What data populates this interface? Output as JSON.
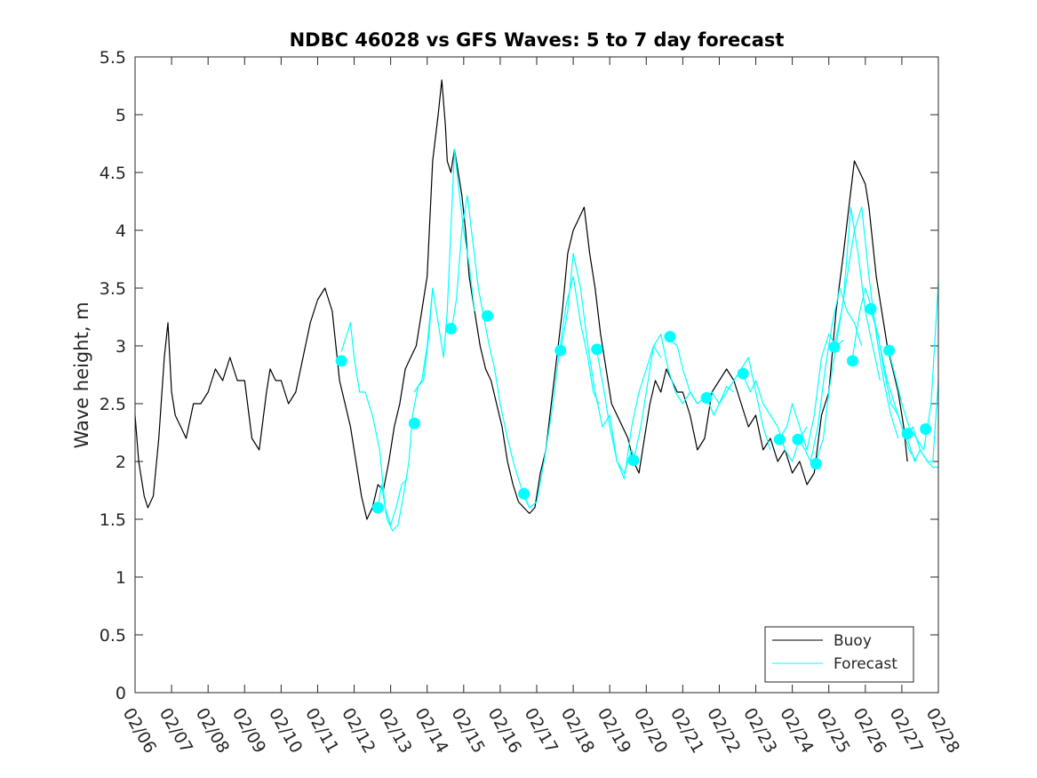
{
  "chart_data": {
    "type": "line",
    "title": "NDBC 46028 vs GFS Waves: 5 to 7 day forecast",
    "xlabel": "",
    "ylabel": "Wave height, m",
    "xlim": [
      0,
      22
    ],
    "ylim": [
      0,
      5.5
    ],
    "x_ticks": [
      "02/06",
      "02/07",
      "02/08",
      "02/09",
      "02/10",
      "02/11",
      "02/12",
      "02/13",
      "02/14",
      "02/15",
      "02/16",
      "02/17",
      "02/18",
      "02/19",
      "02/20",
      "02/21",
      "02/22",
      "02/23",
      "02/24",
      "02/25",
      "02/26",
      "02/27",
      "02/28"
    ],
    "y_ticks": [
      "0",
      "0.5",
      "1",
      "1.5",
      "2",
      "2.5",
      "3",
      "3.5",
      "4",
      "4.5",
      "5",
      "5.5"
    ],
    "legend": {
      "position": "bottom-right",
      "entries": [
        "Buoy",
        "Forecast"
      ]
    },
    "colors": {
      "buoy": "#000000",
      "forecast": "#00ffff",
      "axis": "#262626"
    },
    "series": [
      {
        "name": "Buoy",
        "x": [
          0,
          0.1,
          0.25,
          0.35,
          0.5,
          0.65,
          0.8,
          0.9,
          1.0,
          1.1,
          1.25,
          1.4,
          1.6,
          1.8,
          2.0,
          2.2,
          2.4,
          2.6,
          2.8,
          3.0,
          3.2,
          3.4,
          3.6,
          3.7,
          3.85,
          4.0,
          4.2,
          4.4,
          4.6,
          4.8,
          5.0,
          5.2,
          5.4,
          5.5,
          5.6,
          5.75,
          5.9,
          6.05,
          6.2,
          6.35,
          6.5,
          6.65,
          6.8,
          6.95,
          7.1,
          7.25,
          7.4,
          7.55,
          7.7,
          7.85,
          8.0,
          8.15,
          8.3,
          8.4,
          8.5,
          8.55,
          8.65,
          8.75,
          8.85,
          8.95,
          9.05,
          9.15,
          9.3,
          9.45,
          9.6,
          9.75,
          9.9,
          10.05,
          10.2,
          10.35,
          10.5,
          10.65,
          10.8,
          10.95,
          11.1,
          11.25,
          11.4,
          11.55,
          11.7,
          11.85,
          12.0,
          12.15,
          12.3,
          12.45,
          12.6,
          12.75,
          12.9,
          13.05,
          13.2,
          13.35,
          13.5,
          13.65,
          13.8,
          13.95,
          14.1,
          14.25,
          14.4,
          14.55,
          14.7,
          14.85,
          15.0,
          15.2,
          15.4,
          15.6,
          15.8,
          16.0,
          16.2,
          16.4,
          16.6,
          16.8,
          17.0,
          17.2,
          17.4,
          17.6,
          17.8,
          18.0,
          18.2,
          18.4,
          18.6,
          18.8,
          19.0,
          19.2,
          19.4,
          19.55,
          19.7,
          19.85,
          20.0,
          20.1,
          20.2,
          20.3,
          20.45,
          20.6,
          20.75,
          20.9,
          21.05,
          21.15
        ],
        "values": [
          2.4,
          2.0,
          1.7,
          1.6,
          1.7,
          2.2,
          2.9,
          3.2,
          2.6,
          2.4,
          2.3,
          2.2,
          2.5,
          2.5,
          2.6,
          2.8,
          2.7,
          2.9,
          2.7,
          2.7,
          2.2,
          2.1,
          2.6,
          2.8,
          2.7,
          2.7,
          2.5,
          2.6,
          2.9,
          3.2,
          3.4,
          3.5,
          3.3,
          3.0,
          2.7,
          2.5,
          2.3,
          2.0,
          1.7,
          1.5,
          1.6,
          1.8,
          1.75,
          2.0,
          2.3,
          2.5,
          2.8,
          2.9,
          3.0,
          3.3,
          3.6,
          4.6,
          5.0,
          5.3,
          4.9,
          4.6,
          4.5,
          4.7,
          4.5,
          4.3,
          4.0,
          3.6,
          3.3,
          3.0,
          2.8,
          2.7,
          2.5,
          2.3,
          2.0,
          1.8,
          1.65,
          1.6,
          1.55,
          1.6,
          1.9,
          2.1,
          2.5,
          2.9,
          3.3,
          3.8,
          4.0,
          4.1,
          4.2,
          3.8,
          3.5,
          3.1,
          2.8,
          2.5,
          2.4,
          2.3,
          2.2,
          2.0,
          1.9,
          2.2,
          2.5,
          2.7,
          2.6,
          2.8,
          2.7,
          2.6,
          2.6,
          2.4,
          2.1,
          2.2,
          2.6,
          2.7,
          2.8,
          2.7,
          2.5,
          2.3,
          2.4,
          2.1,
          2.2,
          2.0,
          2.1,
          1.9,
          2.0,
          1.8,
          1.9,
          2.4,
          2.6,
          3.3,
          3.8,
          4.2,
          4.6,
          4.5,
          4.4,
          4.2,
          3.9,
          3.6,
          3.3,
          3.0,
          2.8,
          2.6,
          2.3,
          2.0
        ]
      },
      {
        "name": "Forecast",
        "segments": [
          {
            "x": [
              5.65,
              5.8,
              5.9,
              6.0,
              6.15,
              6.3,
              6.5,
              6.7,
              6.85,
              7.0,
              7.15,
              7.3,
              7.45
            ],
            "values": [
              2.95,
              3.1,
              3.2,
              2.9,
              2.6,
              2.6,
              2.4,
              2.1,
              1.6,
              1.45,
              1.6,
              1.8,
              1.85
            ]
          },
          {
            "x": [
              6.65,
              6.75,
              6.9,
              7.05,
              7.2,
              7.35,
              7.5,
              7.6,
              7.75,
              7.9,
              8.05,
              8.15
            ],
            "values": [
              1.6,
              1.8,
              1.5,
              1.4,
              1.45,
              1.7,
              2.0,
              2.4,
              2.65,
              2.7,
              3.1,
              3.5
            ]
          },
          {
            "x": [
              7.65,
              7.85,
              8.0,
              8.15,
              8.3,
              8.45,
              8.55,
              8.65,
              8.75,
              8.85,
              9.0,
              9.15,
              9.3
            ],
            "values": [
              2.6,
              2.7,
              3.0,
              3.5,
              3.2,
              2.9,
              3.3,
              4.0,
              4.7,
              4.4,
              4.0,
              3.7,
              3.3
            ]
          },
          {
            "x": [
              8.65,
              8.8,
              8.95,
              9.1,
              9.25,
              9.4,
              9.55,
              9.7,
              9.85,
              10.0,
              10.2,
              10.4,
              10.6,
              10.8,
              11.0
            ],
            "values": [
              3.1,
              3.4,
              4.0,
              4.3,
              3.9,
              3.5,
              3.25,
              3.0,
              2.8,
              2.5,
              2.2,
              1.95,
              1.75,
              1.6,
              1.65
            ]
          },
          {
            "x": [
              10.65,
              10.8,
              11.0,
              11.2,
              11.4,
              11.6,
              11.8,
              12.0,
              12.2,
              12.4,
              12.55,
              12.7
            ],
            "values": [
              1.7,
              1.6,
              1.65,
              2.0,
              2.4,
              2.9,
              3.35,
              3.6,
              3.2,
              2.9,
              2.6,
              2.5
            ]
          },
          {
            "x": [
              11.65,
              11.85,
              12.0,
              12.2,
              12.4,
              12.6,
              12.8,
              13.0,
              13.2,
              13.4,
              13.6,
              13.75
            ],
            "values": [
              2.95,
              3.3,
              3.8,
              3.5,
              3.0,
              2.6,
              2.3,
              2.4,
              2.0,
              1.9,
              2.1,
              2.0
            ]
          },
          {
            "x": [
              12.65,
              12.85,
              13.0,
              13.2,
              13.4,
              13.6,
              13.8,
              14.0,
              14.2,
              14.4
            ],
            "values": [
              2.95,
              2.6,
              2.3,
              2.0,
              1.85,
              2.3,
              2.6,
              2.8,
              3.0,
              2.9
            ]
          },
          {
            "x": [
              13.65,
              13.85,
              14.0,
              14.2,
              14.4,
              14.6,
              14.8,
              15.0,
              15.2,
              15.4
            ],
            "values": [
              2.0,
              2.3,
              2.6,
              3.0,
              3.1,
              2.8,
              2.6,
              2.5,
              2.6,
              2.5
            ]
          },
          {
            "x": [
              14.65,
              14.85,
              15.0,
              15.2,
              15.4,
              15.6,
              15.8,
              16.0,
              16.2,
              16.4
            ],
            "values": [
              3.05,
              3.0,
              2.8,
              2.6,
              2.5,
              2.55,
              2.6,
              2.5,
              2.65,
              2.6
            ]
          },
          {
            "x": [
              15.65,
              15.85,
              16.0,
              16.2,
              16.4,
              16.6,
              16.8,
              17.0,
              17.2,
              17.4
            ],
            "values": [
              2.55,
              2.4,
              2.5,
              2.6,
              2.7,
              2.8,
              2.9,
              2.6,
              2.3,
              2.1
            ]
          },
          {
            "x": [
              16.65,
              16.85,
              17.0,
              17.2,
              17.4,
              17.6,
              17.8,
              18.0,
              18.2,
              18.4
            ],
            "values": [
              2.75,
              2.6,
              2.7,
              2.5,
              2.4,
              2.3,
              2.1,
              2.0,
              2.2,
              2.3
            ]
          },
          {
            "x": [
              17.65,
              17.85,
              18.0,
              18.2,
              18.4,
              18.6,
              18.8,
              19.0,
              19.2,
              19.4
            ],
            "values": [
              2.2,
              2.3,
              2.5,
              2.3,
              2.1,
              2.4,
              2.9,
              3.1,
              3.0,
              3.05
            ]
          },
          {
            "x": [
              18.15,
              18.35,
              18.5,
              18.7,
              18.9,
              19.1,
              19.3,
              19.5,
              19.7,
              19.9
            ],
            "values": [
              2.2,
              2.1,
              2.0,
              2.3,
              2.8,
              3.2,
              3.5,
              3.3,
              3.2,
              3.0
            ]
          },
          {
            "x": [
              18.65,
              18.85,
              19.0,
              19.2,
              19.4,
              19.6,
              19.8,
              20.0,
              20.2,
              20.4
            ],
            "values": [
              2.0,
              2.2,
              2.6,
              3.0,
              3.4,
              4.2,
              3.8,
              3.3,
              3.0,
              2.7
            ]
          },
          {
            "x": [
              19.15,
              19.35,
              19.5,
              19.7,
              19.9,
              20.1,
              20.3,
              20.5,
              20.7,
              20.9
            ],
            "values": [
              3.0,
              3.3,
              3.6,
              4.0,
              4.2,
              3.6,
              3.1,
              2.7,
              2.4,
              2.2
            ]
          },
          {
            "x": [
              19.65,
              19.85,
              20.0,
              20.2,
              20.4,
              20.6,
              20.8,
              21.0,
              21.2,
              21.4
            ],
            "values": [
              2.9,
              3.3,
              3.5,
              3.3,
              3.0,
              2.7,
              2.5,
              2.3,
              2.1,
              2.0
            ]
          },
          {
            "x": [
              20.15,
              20.35,
              20.5,
              20.7,
              20.9,
              21.1,
              21.3,
              21.5,
              21.7,
              21.85,
              22.0
            ],
            "values": [
              3.3,
              3.1,
              2.8,
              2.5,
              2.4,
              2.2,
              2.3,
              2.1,
              2.0,
              2.0,
              2.7
            ]
          },
          {
            "x": [
              20.65,
              20.85,
              21.0,
              21.2,
              21.4,
              21.6,
              21.8,
              22.0
            ],
            "values": [
              2.95,
              2.7,
              2.5,
              2.3,
              2.2,
              2.1,
              2.5,
              3.55
            ]
          },
          {
            "x": [
              21.15,
              21.35,
              21.5,
              21.7,
              21.85,
              22.0
            ],
            "values": [
              2.2,
              2.0,
              2.1,
              2.0,
              1.95,
              1.95
            ]
          }
        ],
        "markers": {
          "x": [
            5.65,
            6.65,
            7.65,
            8.65,
            9.65,
            10.65,
            11.65,
            12.65,
            13.65,
            14.65,
            15.65,
            16.65,
            17.65,
            18.15,
            18.65,
            19.15,
            19.65,
            20.15,
            20.65,
            21.15,
            21.65
          ],
          "values": [
            2.87,
            1.6,
            2.33,
            3.15,
            3.26,
            1.72,
            2.96,
            2.97,
            2.01,
            3.08,
            2.55,
            2.76,
            2.19,
            2.19,
            1.98,
            2.99,
            2.87,
            3.32,
            2.96,
            2.24,
            2.28
          ]
        }
      }
    ]
  }
}
